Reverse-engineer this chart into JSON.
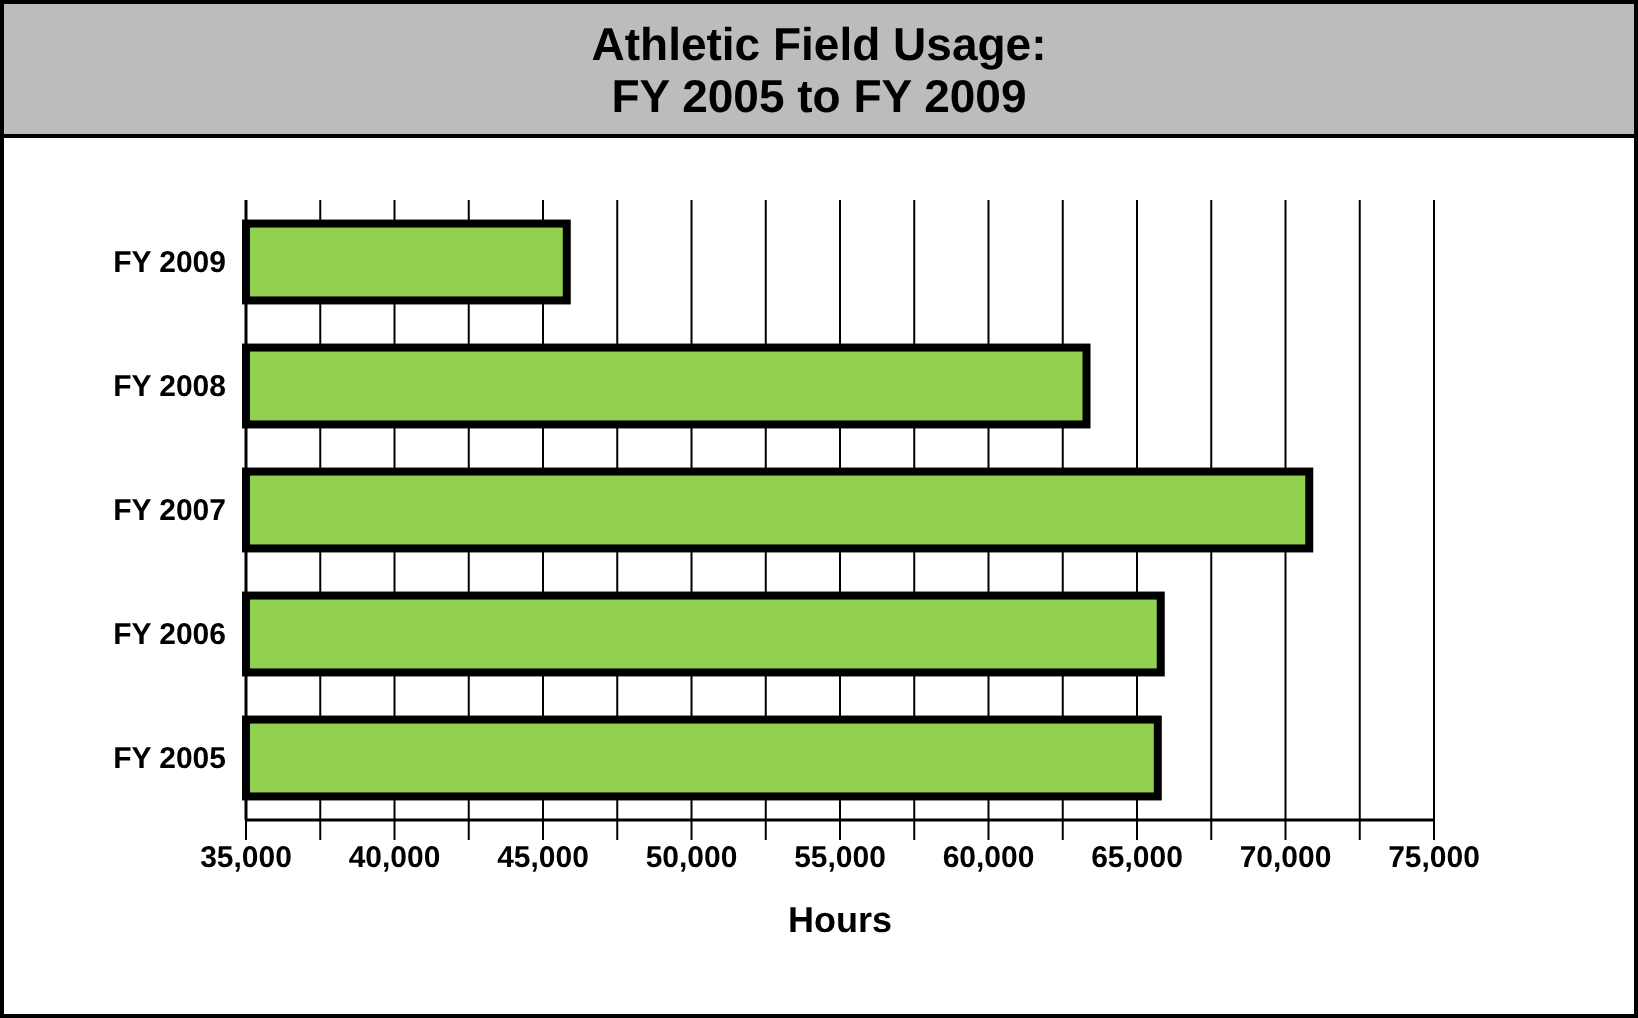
{
  "chart_data": {
    "type": "bar",
    "orientation": "horizontal",
    "title": "Athletic Field Usage:\nFY 2005 to FY 2009",
    "xlabel": "Hours",
    "categories": [
      "FY 2009",
      "FY 2008",
      "FY 2007",
      "FY 2006",
      "FY 2005"
    ],
    "values": [
      45800,
      63300,
      70800,
      65800,
      65700
    ],
    "color": "#92d050",
    "xlim": [
      35000,
      75000
    ],
    "xticks": [
      {
        "value": 35000,
        "label": "35,000"
      },
      {
        "value": 37500,
        "label": null
      },
      {
        "value": 40000,
        "label": "40,000"
      },
      {
        "value": 42500,
        "label": null
      },
      {
        "value": 45000,
        "label": "45,000"
      },
      {
        "value": 47500,
        "label": null
      },
      {
        "value": 50000,
        "label": "50,000"
      },
      {
        "value": 52500,
        "label": null
      },
      {
        "value": 55000,
        "label": "55,000"
      },
      {
        "value": 57500,
        "label": null
      },
      {
        "value": 60000,
        "label": "60,000"
      },
      {
        "value": 62500,
        "label": null
      },
      {
        "value": 65000,
        "label": "65,000"
      },
      {
        "value": 67500,
        "label": null
      },
      {
        "value": 70000,
        "label": "70,000"
      },
      {
        "value": 72500,
        "label": null
      },
      {
        "value": 75000,
        "label": "75,000"
      }
    ],
    "grid": "x"
  }
}
